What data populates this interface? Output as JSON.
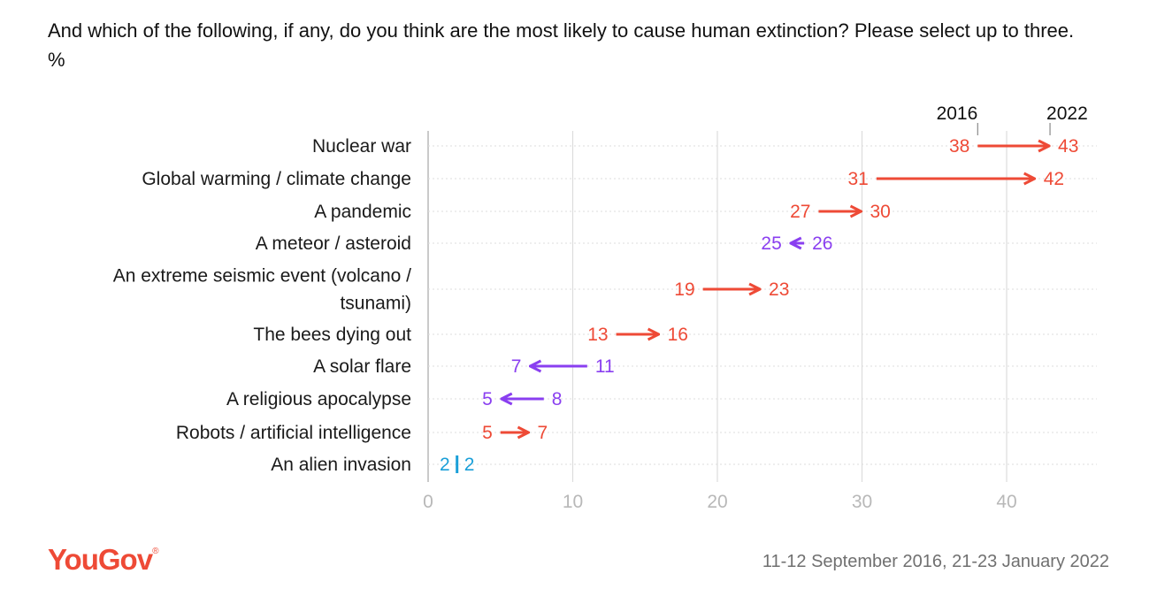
{
  "title": "And which of the following, if any, do you think are the most likely to cause human extinction? Please select up to three. %",
  "footnote": "11-12 September 2016, 21-23 January 2022",
  "logo": {
    "text": "YouGov",
    "color": "#ee4a36"
  },
  "colors": {
    "increase": "#ee4a36",
    "decrease": "#8a3ff0",
    "unchanged": "#1a9fd8",
    "grid": "#dcdcdc",
    "axis": "#b8b8b8"
  },
  "chart_data": {
    "type": "dumbbell",
    "series_labels": [
      "2016",
      "2022"
    ],
    "xlim": [
      0,
      45
    ],
    "xticks": [
      "0",
      "10",
      "20",
      "30",
      "40"
    ],
    "categories": [
      "Nuclear war",
      "Global warming / climate change",
      "A pandemic",
      "A meteor / asteroid",
      "An extreme seismic event (volcano / tsunami)",
      "The bees dying out",
      "A solar flare",
      "A religious apocalypse",
      "Robots / artificial intelligence",
      "An alien invasion"
    ],
    "category_lines": [
      [
        "Nuclear war"
      ],
      [
        "Global warming / climate change"
      ],
      [
        "A pandemic"
      ],
      [
        "A meteor / asteroid"
      ],
      [
        "An extreme seismic event (volcano /",
        "tsunami)"
      ],
      [
        "The bees dying out"
      ],
      [
        "A solar flare"
      ],
      [
        "A religious apocalypse"
      ],
      [
        "Robots / artificial intelligence"
      ],
      [
        "An alien invasion"
      ]
    ],
    "values_2016": [
      38,
      31,
      27,
      26,
      19,
      13,
      11,
      8,
      5,
      2
    ],
    "values_2022": [
      43,
      42,
      30,
      25,
      23,
      16,
      7,
      5,
      7,
      2
    ],
    "grid": true
  }
}
